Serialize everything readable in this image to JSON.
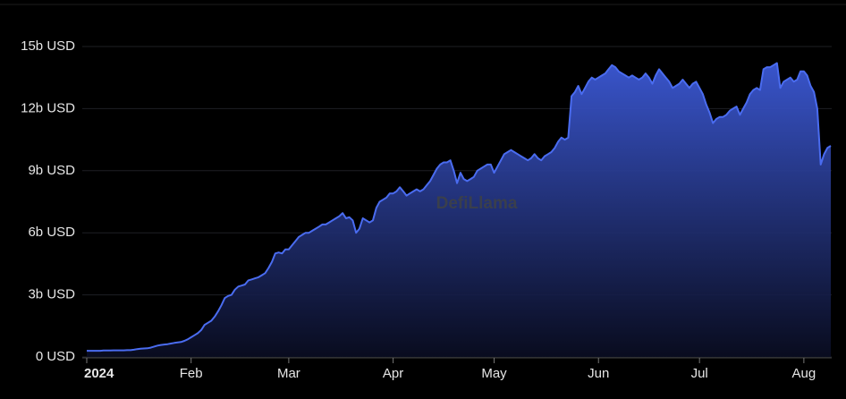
{
  "chart_data": {
    "type": "area",
    "watermark": "DefiLlama",
    "color": "#4a6cf0",
    "grid": true,
    "ylim": [
      0,
      15
    ],
    "yticks": [
      {
        "value": 0,
        "label": "0 USD"
      },
      {
        "value": 3,
        "label": "3b USD"
      },
      {
        "value": 6,
        "label": "6b USD"
      },
      {
        "value": 9,
        "label": "9b USD"
      },
      {
        "value": 12,
        "label": "12b USD"
      },
      {
        "value": 15,
        "label": "15b USD"
      }
    ],
    "categories": [
      "2024",
      null,
      null,
      null,
      null,
      null,
      null,
      null,
      null,
      null,
      null,
      null,
      null,
      null,
      null,
      null,
      null,
      null,
      null,
      null,
      null,
      null,
      null,
      null,
      null,
      null,
      null,
      null,
      null,
      null,
      null,
      "Feb",
      null,
      null,
      null,
      null,
      null,
      null,
      null,
      null,
      null,
      null,
      null,
      null,
      null,
      null,
      null,
      null,
      null,
      null,
      null,
      null,
      null,
      null,
      null,
      null,
      null,
      null,
      null,
      null,
      "Mar",
      null,
      null,
      null,
      null,
      null,
      null,
      null,
      null,
      null,
      null,
      null,
      null,
      null,
      null,
      null,
      null,
      null,
      null,
      null,
      null,
      null,
      null,
      null,
      null,
      null,
      null,
      null,
      null,
      null,
      null,
      "Apr",
      null,
      null,
      null,
      null,
      null,
      null,
      null,
      null,
      null,
      null,
      null,
      null,
      null,
      null,
      null,
      null,
      null,
      null,
      null,
      null,
      null,
      null,
      null,
      null,
      null,
      null,
      null,
      null,
      null,
      "May",
      null,
      null,
      null,
      null,
      null,
      null,
      null,
      null,
      null,
      null,
      null,
      null,
      null,
      null,
      null,
      null,
      null,
      null,
      null,
      null,
      null,
      null,
      null,
      null,
      null,
      null,
      null,
      null,
      null,
      null,
      "Jun",
      null,
      null,
      null,
      null,
      null,
      null,
      null,
      null,
      null,
      null,
      null,
      null,
      null,
      null,
      null,
      null,
      null,
      null,
      null,
      null,
      null,
      null,
      null,
      null,
      null,
      null,
      null,
      null,
      null,
      "Jul",
      null,
      null,
      null,
      null,
      null,
      null,
      null,
      null,
      null,
      null,
      null,
      null,
      null,
      null,
      null,
      null,
      null,
      null,
      null,
      null,
      null,
      null,
      null,
      null,
      null,
      null,
      null,
      null,
      null,
      null,
      "Aug",
      null,
      null,
      null,
      null,
      null,
      null,
      null,
      null
    ],
    "values": [
      0.3,
      0.3,
      0.3,
      0.3,
      0.3,
      0.31,
      0.31,
      0.31,
      0.32,
      0.32,
      0.32,
      0.32,
      0.33,
      0.33,
      0.35,
      0.38,
      0.4,
      0.41,
      0.42,
      0.45,
      0.5,
      0.55,
      0.58,
      0.6,
      0.62,
      0.65,
      0.68,
      0.7,
      0.72,
      0.78,
      0.85,
      0.95,
      1.05,
      1.15,
      1.3,
      1.55,
      1.65,
      1.75,
      1.95,
      2.2,
      2.5,
      2.85,
      2.95,
      3.0,
      3.25,
      3.4,
      3.45,
      3.5,
      3.7,
      3.75,
      3.8,
      3.85,
      3.95,
      4.05,
      4.3,
      4.6,
      5.0,
      5.05,
      5.0,
      5.2,
      5.2,
      5.4,
      5.6,
      5.8,
      5.9,
      6.0,
      6.0,
      6.1,
      6.2,
      6.3,
      6.4,
      6.4,
      6.5,
      6.6,
      6.7,
      6.8,
      6.95,
      6.7,
      6.75,
      6.6,
      6.0,
      6.2,
      6.7,
      6.6,
      6.5,
      6.6,
      7.2,
      7.5,
      7.6,
      7.7,
      7.9,
      7.9,
      8.0,
      8.2,
      8.0,
      7.8,
      7.9,
      8.0,
      8.1,
      8.0,
      8.1,
      8.3,
      8.5,
      8.8,
      9.1,
      9.3,
      9.4,
      9.4,
      9.5,
      9.0,
      8.4,
      8.9,
      8.6,
      8.5,
      8.6,
      8.7,
      9.0,
      9.1,
      9.2,
      9.3,
      9.3,
      8.9,
      9.2,
      9.5,
      9.8,
      9.9,
      10.0,
      9.9,
      9.8,
      9.7,
      9.6,
      9.5,
      9.6,
      9.8,
      9.6,
      9.5,
      9.7,
      9.8,
      9.9,
      10.1,
      10.4,
      10.6,
      10.5,
      10.6,
      12.6,
      12.8,
      13.1,
      12.7,
      13.0,
      13.3,
      13.5,
      13.4,
      13.5,
      13.6,
      13.7,
      13.9,
      14.1,
      14.0,
      13.8,
      13.7,
      13.6,
      13.5,
      13.6,
      13.5,
      13.4,
      13.5,
      13.7,
      13.5,
      13.2,
      13.6,
      13.9,
      13.7,
      13.5,
      13.3,
      13.0,
      13.1,
      13.2,
      13.4,
      13.2,
      13.0,
      13.2,
      13.3,
      13.0,
      12.7,
      12.2,
      11.8,
      11.3,
      11.5,
      11.6,
      11.6,
      11.7,
      11.9,
      12.0,
      12.1,
      11.7,
      12.0,
      12.3,
      12.7,
      12.9,
      13.0,
      12.9,
      13.9,
      14.0,
      14.0,
      14.1,
      14.2,
      13.0,
      13.3,
      13.4,
      13.5,
      13.3,
      13.4,
      13.8,
      13.8,
      13.6,
      13.1,
      12.8,
      12.0,
      9.3,
      9.8,
      10.1,
      10.2
    ]
  }
}
